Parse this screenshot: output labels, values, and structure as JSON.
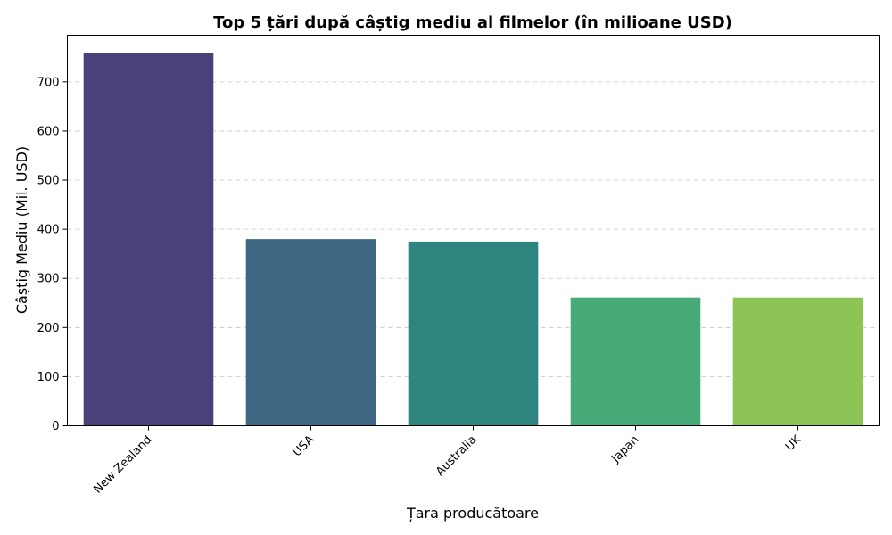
{
  "chart_data": {
    "type": "bar",
    "title": "Top 5 țări după câștig mediu al filmelor (în milioane USD)",
    "xlabel": "Țara producătoare",
    "ylabel": "Câștig Mediu (Mil. USD)",
    "categories": [
      "New Zealand",
      "USA",
      "Australia",
      "Japan",
      "UK"
    ],
    "values": [
      758,
      380,
      375,
      261,
      261
    ],
    "colors": [
      "#4a417a",
      "#3c6682",
      "#2e8580",
      "#48aa78",
      "#8dc456"
    ],
    "yticks": [
      0,
      100,
      200,
      300,
      400,
      500,
      600,
      700
    ],
    "ylim": [
      0,
      795
    ],
    "grid": "y-dashed",
    "legend": "none"
  }
}
